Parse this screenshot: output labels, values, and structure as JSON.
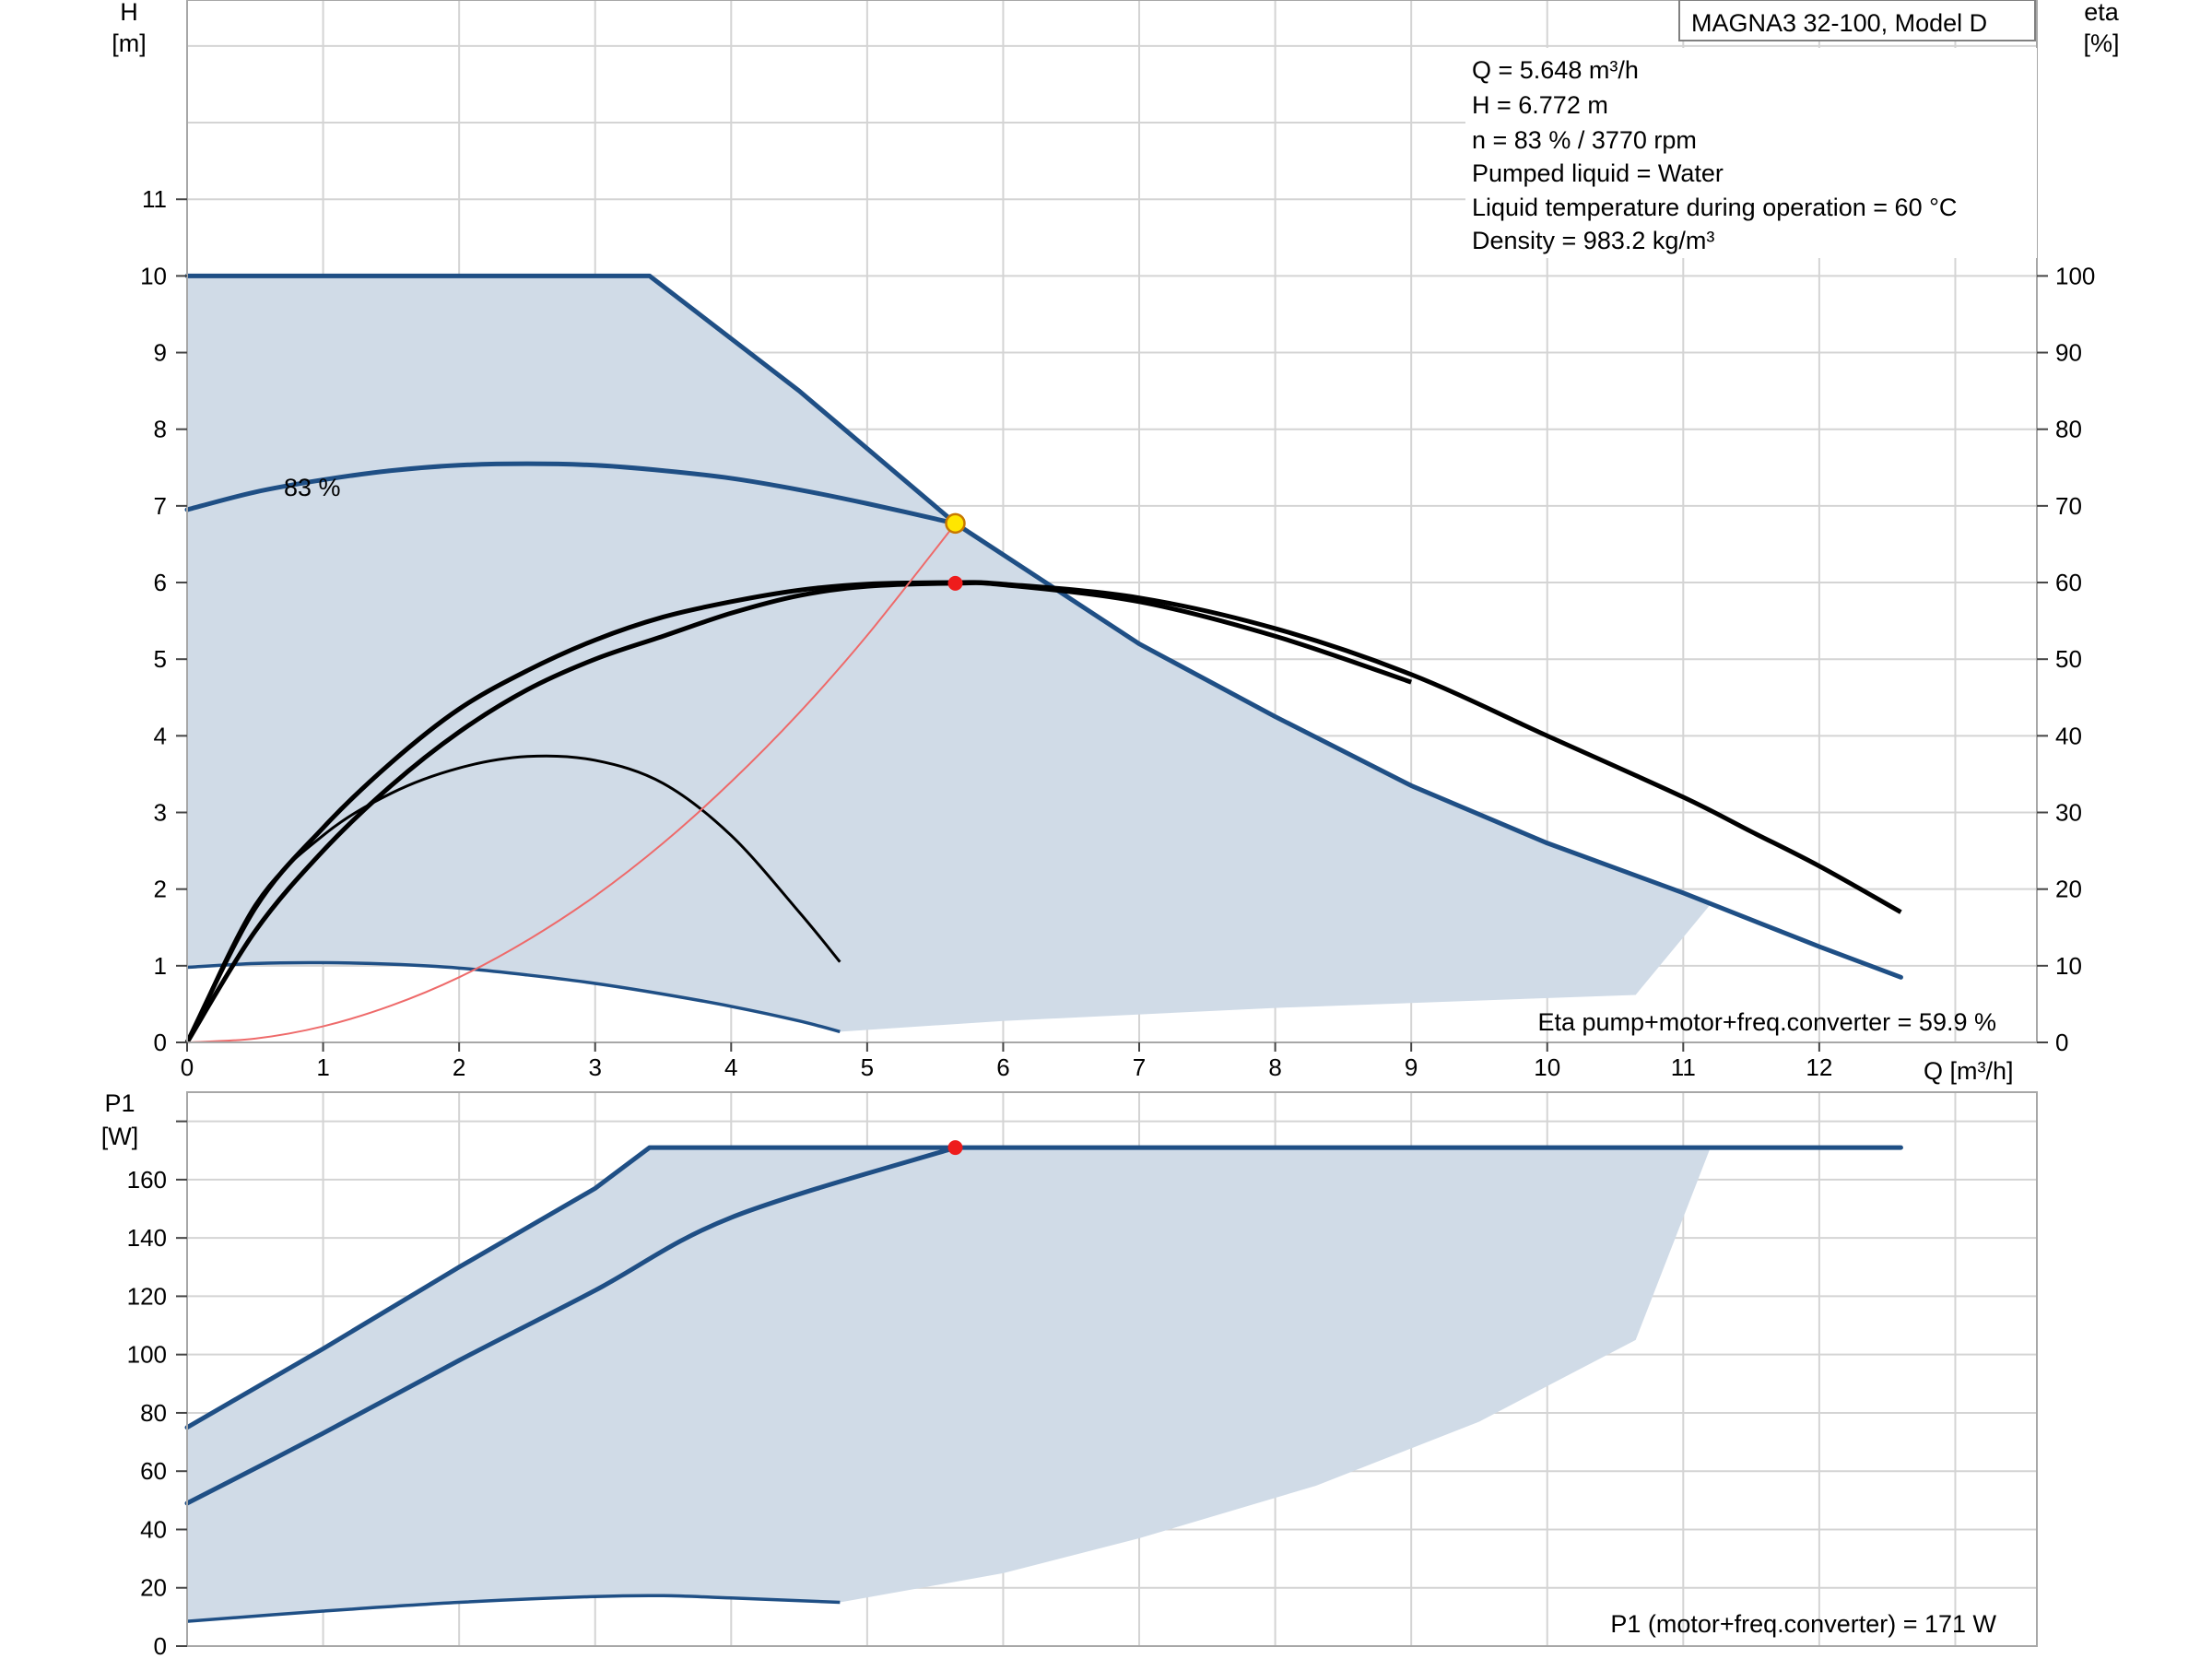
{
  "chart_data": [
    {
      "type": "line",
      "title": "MAGNA3 32-100, Model D",
      "xlabel": "Q [m³/h]",
      "ylabel_left": [
        "H",
        "[m]"
      ],
      "ylabel_right": [
        "eta",
        "[%]"
      ],
      "xlim": [
        0,
        13.6
      ],
      "ylim_left": [
        0,
        13.6
      ],
      "ylim_right": [
        0,
        136
      ],
      "x_ticks": [
        "0",
        "1",
        "2",
        "3",
        "4",
        "5",
        "6",
        "7",
        "8",
        "9",
        "10",
        "11",
        "12"
      ],
      "y_ticks_left": [
        "0",
        "1",
        "2",
        "3",
        "4",
        "5",
        "6",
        "7",
        "8",
        "9",
        "10",
        "11"
      ],
      "y_ticks_right": [
        "0",
        "10",
        "20",
        "30",
        "40",
        "50",
        "60",
        "70",
        "80",
        "90",
        "100"
      ],
      "grid": true,
      "info_lines": [
        "Q = 5.648 m³/h",
        "H = 6.772 m",
        "n = 83 % / 3770 rpm",
        "Pumped liquid = Water",
        "Liquid temperature during operation = 60 °C",
        "Density = 983.2 kg/m³"
      ],
      "curve_label": "83 %",
      "footer_note": "Eta pump+motor+freq.converter = 59.9 %",
      "operating_point": {
        "q": 5.648,
        "h": 6.772,
        "eta": 59.9
      },
      "colors": {
        "curve": "#1f4f85",
        "area": "#d0dbe7",
        "eta": "#000000",
        "system": "#ee6a6a",
        "duty": "#ffe600",
        "eta_point": "#ee1c1c"
      },
      "series": [
        {
          "id": "max",
          "values": [
            [
              0,
              10.0
            ],
            [
              3.4,
              10.0
            ],
            [
              4.5,
              8.5
            ],
            [
              5.65,
              6.77
            ],
            [
              7,
              5.2
            ],
            [
              8,
              4.25
            ],
            [
              9,
              3.35
            ],
            [
              10,
              2.6
            ],
            [
              11,
              1.95
            ],
            [
              12,
              1.25
            ],
            [
              12.6,
              0.85
            ]
          ]
        },
        {
          "id": "speed-83",
          "values": [
            [
              0,
              6.95
            ],
            [
              0.5,
              7.18
            ],
            [
              1,
              7.34
            ],
            [
              1.5,
              7.46
            ],
            [
              2,
              7.53
            ],
            [
              2.5,
              7.55
            ],
            [
              3,
              7.53
            ],
            [
              3.5,
              7.46
            ],
            [
              4,
              7.36
            ],
            [
              4.5,
              7.21
            ],
            [
              5,
              7.03
            ],
            [
              5.65,
              6.77
            ]
          ]
        },
        {
          "id": "min",
          "values": [
            [
              0,
              0.98
            ],
            [
              0.5,
              1.03
            ],
            [
              1,
              1.04
            ],
            [
              1.5,
              1.02
            ],
            [
              2,
              0.97
            ],
            [
              2.5,
              0.88
            ],
            [
              3,
              0.77
            ],
            [
              3.5,
              0.63
            ],
            [
              4,
              0.47
            ],
            [
              4.5,
              0.28
            ],
            [
              4.8,
              0.14
            ]
          ]
        },
        {
          "id": "eta-max",
          "values": [
            [
              0,
              0
            ],
            [
              0.5,
              17.5
            ],
            [
              1,
              28
            ],
            [
              1.5,
              36.5
            ],
            [
              2,
              43.5
            ],
            [
              2.5,
              48.5
            ],
            [
              3,
              52.5
            ],
            [
              3.5,
              55.5
            ],
            [
              4,
              57.5
            ],
            [
              4.5,
              59
            ],
            [
              5,
              59.8
            ],
            [
              5.65,
              60
            ],
            [
              6,
              59.8
            ],
            [
              7,
              58
            ],
            [
              8,
              54
            ],
            [
              9,
              48
            ],
            [
              10,
              40
            ],
            [
              11,
              32
            ],
            [
              11.5,
              27.5
            ],
            [
              12,
              23
            ],
            [
              12.6,
              17
            ]
          ]
        },
        {
          "id": "eta-83",
          "values": [
            [
              0,
              0
            ],
            [
              0.5,
              14.5
            ],
            [
              1,
              25
            ],
            [
              1.5,
              33.5
            ],
            [
              2,
              40.5
            ],
            [
              2.5,
              46
            ],
            [
              3,
              50
            ],
            [
              3.5,
              53
            ],
            [
              4,
              56
            ],
            [
              4.5,
              58.3
            ],
            [
              5,
              59.5
            ],
            [
              5.65,
              59.9
            ],
            [
              6,
              59.7
            ],
            [
              7,
              57.5
            ],
            [
              8,
              53
            ],
            [
              9,
              47
            ]
          ]
        },
        {
          "id": "eta-min",
          "values": [
            [
              0,
              0
            ],
            [
              0.5,
              18
            ],
            [
              1,
              27
            ],
            [
              1.5,
              32.5
            ],
            [
              2,
              35.8
            ],
            [
              2.5,
              37.3
            ],
            [
              3,
              36.8
            ],
            [
              3.5,
              33.8
            ],
            [
              4,
              27
            ],
            [
              4.5,
              17
            ],
            [
              4.8,
              10.5
            ]
          ]
        },
        {
          "id": "system",
          "values": [
            [
              0,
              0
            ],
            [
              0.5,
              0.05
            ],
            [
              1,
              0.21
            ],
            [
              1.5,
              0.48
            ],
            [
              2,
              0.85
            ],
            [
              2.5,
              1.33
            ],
            [
              3,
              1.91
            ],
            [
              3.5,
              2.6
            ],
            [
              4,
              3.4
            ],
            [
              4.5,
              4.3
            ],
            [
              5,
              5.31
            ],
            [
              5.65,
              6.77
            ]
          ]
        }
      ],
      "area_polygon": [
        [
          0,
          10.0
        ],
        [
          3.4,
          10.0
        ],
        [
          4.5,
          8.5
        ],
        [
          5.65,
          6.77
        ],
        [
          7,
          5.2
        ],
        [
          8,
          4.25
        ],
        [
          9,
          3.35
        ],
        [
          10,
          2.6
        ],
        [
          11.2,
          1.8
        ],
        [
          10.65,
          0.62
        ],
        [
          8,
          0.45
        ],
        [
          6,
          0.28
        ],
        [
          4.8,
          0.14
        ],
        [
          4,
          0.47
        ],
        [
          3,
          0.77
        ],
        [
          2,
          0.97
        ],
        [
          1,
          1.04
        ],
        [
          0,
          0.98
        ]
      ]
    },
    {
      "type": "line",
      "xlabel": "",
      "ylabel": [
        "P1",
        "[W]"
      ],
      "xlim": [
        0,
        13.6
      ],
      "ylim": [
        0,
        190
      ],
      "y_ticks": [
        "0",
        "20",
        "40",
        "60",
        "80",
        "100",
        "120",
        "140",
        "160"
      ],
      "grid": true,
      "footer_note": "P1 (motor+freq.converter) = 171 W",
      "operating_point": {
        "q": 5.648,
        "p1": 171
      },
      "colors": {
        "curve": "#1f4f85",
        "area": "#d0dbe7",
        "point": "#ee1c1c"
      },
      "series": [
        {
          "id": "p1-max",
          "values": [
            [
              0,
              75
            ],
            [
              1,
              102
            ],
            [
              2,
              130
            ],
            [
              3,
              157
            ],
            [
              3.4,
              171
            ],
            [
              12.6,
              171
            ]
          ]
        },
        {
          "id": "p1-83",
          "values": [
            [
              0,
              49
            ],
            [
              1,
              73
            ],
            [
              2,
              98
            ],
            [
              3,
              122
            ],
            [
              4,
              147
            ],
            [
              5.65,
              171
            ]
          ]
        },
        {
          "id": "p1-min",
          "values": [
            [
              0,
              8.5
            ],
            [
              1,
              12
            ],
            [
              2,
              15
            ],
            [
              3,
              17
            ],
            [
              3.5,
              17.3
            ],
            [
              4,
              16.5
            ],
            [
              4.8,
              15
            ]
          ]
        }
      ],
      "area_polygon": [
        [
          0,
          75
        ],
        [
          1,
          102
        ],
        [
          2,
          130
        ],
        [
          3,
          157
        ],
        [
          3.4,
          171
        ],
        [
          11.2,
          171
        ],
        [
          10.65,
          105
        ],
        [
          9.5,
          77
        ],
        [
          8.3,
          55
        ],
        [
          7,
          37
        ],
        [
          6,
          25
        ],
        [
          4.8,
          15
        ],
        [
          4,
          16.5
        ],
        [
          3,
          17
        ],
        [
          2,
          15
        ],
        [
          1,
          12
        ],
        [
          0,
          8.5
        ]
      ]
    }
  ]
}
